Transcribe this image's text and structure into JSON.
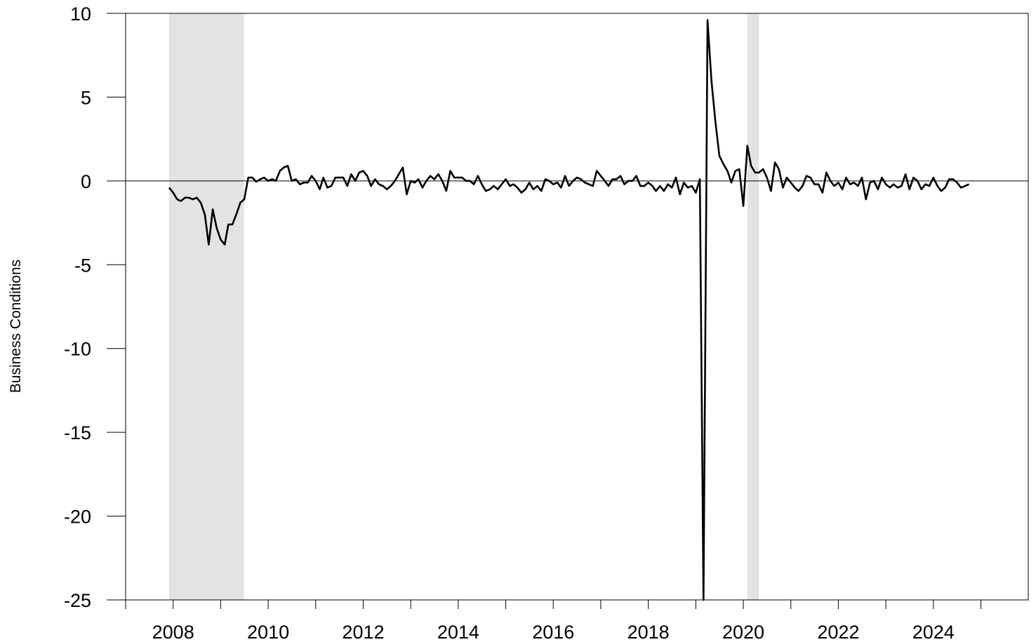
{
  "chart_data": {
    "type": "line",
    "title": "",
    "xlabel": "",
    "ylabel": "Business Conditions",
    "xlim": [
      "2007-01-01",
      "2025-12-31"
    ],
    "ylim": [
      -25,
      10
    ],
    "x_ticks": [
      "2008",
      "2010",
      "2012",
      "2014",
      "2016",
      "2018",
      "2020",
      "2022",
      "2024"
    ],
    "y_ticks": [
      10,
      5,
      0,
      -5,
      -10,
      -15,
      -20,
      -25
    ],
    "zero_line": 0,
    "grid": false,
    "legend": "none",
    "line_color": "#000000",
    "shade_color": "#e3e3e3",
    "shaded_periods": [
      {
        "start": "2007-12-01",
        "end": "2009-06-30"
      },
      {
        "start": "2020-02-01",
        "end": "2020-04-30"
      }
    ],
    "series": [
      {
        "points": [
          [
            "2007-12-01",
            -0.4
          ],
          [
            "2008-01-01",
            -0.7
          ],
          [
            "2008-02-01",
            -1.1
          ],
          [
            "2008-03-01",
            -1.2
          ],
          [
            "2008-04-01",
            -1.0
          ],
          [
            "2008-05-01",
            -1.0
          ],
          [
            "2008-06-01",
            -1.1
          ],
          [
            "2008-07-01",
            -1.0
          ],
          [
            "2008-08-01",
            -1.3
          ],
          [
            "2008-09-01",
            -2.0
          ],
          [
            "2008-10-01",
            -3.8
          ],
          [
            "2008-11-01",
            -1.7
          ],
          [
            "2008-12-01",
            -2.8
          ],
          [
            "2009-01-01",
            -3.5
          ],
          [
            "2009-02-01",
            -3.8
          ],
          [
            "2009-03-01",
            -2.6
          ],
          [
            "2009-04-01",
            -2.6
          ],
          [
            "2009-05-01",
            -2.0
          ],
          [
            "2009-06-01",
            -1.3
          ],
          [
            "2009-07-01",
            -1.1
          ],
          [
            "2009-08-01",
            0.2
          ],
          [
            "2009-09-01",
            0.2
          ],
          [
            "2009-10-01",
            -0.05
          ],
          [
            "2009-11-01",
            0.1
          ],
          [
            "2009-12-01",
            0.2
          ],
          [
            "2010-01-01",
            0.0
          ],
          [
            "2010-02-01",
            0.1
          ],
          [
            "2010-03-01",
            0.0
          ],
          [
            "2010-04-01",
            0.6
          ],
          [
            "2010-05-01",
            0.8
          ],
          [
            "2010-06-01",
            0.9
          ],
          [
            "2010-07-01",
            0.0
          ],
          [
            "2010-08-01",
            0.1
          ],
          [
            "2010-09-01",
            -0.2
          ],
          [
            "2010-10-01",
            -0.1
          ],
          [
            "2010-11-01",
            -0.1
          ],
          [
            "2010-12-01",
            0.3
          ],
          [
            "2011-01-01",
            0.0
          ],
          [
            "2011-02-01",
            -0.5
          ],
          [
            "2011-03-01",
            0.2
          ],
          [
            "2011-04-01",
            -0.4
          ],
          [
            "2011-05-01",
            -0.3
          ],
          [
            "2011-06-01",
            0.2
          ],
          [
            "2011-07-01",
            0.2
          ],
          [
            "2011-08-01",
            0.2
          ],
          [
            "2011-09-01",
            -0.3
          ],
          [
            "2011-10-01",
            0.4
          ],
          [
            "2011-11-01",
            0.0
          ],
          [
            "2011-12-01",
            0.5
          ],
          [
            "2012-01-01",
            0.6
          ],
          [
            "2012-02-01",
            0.3
          ],
          [
            "2012-03-01",
            -0.3
          ],
          [
            "2012-04-01",
            0.1
          ],
          [
            "2012-05-01",
            -0.2
          ],
          [
            "2012-06-01",
            -0.3
          ],
          [
            "2012-07-01",
            -0.5
          ],
          [
            "2012-08-01",
            -0.3
          ],
          [
            "2012-09-01",
            0.0
          ],
          [
            "2012-10-01",
            0.4
          ],
          [
            "2012-11-01",
            0.8
          ],
          [
            "2012-12-01",
            -0.8
          ],
          [
            "2013-01-01",
            0.0
          ],
          [
            "2013-02-01",
            -0.1
          ],
          [
            "2013-03-01",
            0.1
          ],
          [
            "2013-04-01",
            -0.4
          ],
          [
            "2013-05-01",
            0.0
          ],
          [
            "2013-06-01",
            0.3
          ],
          [
            "2013-07-01",
            0.1
          ],
          [
            "2013-08-01",
            0.4
          ],
          [
            "2013-09-01",
            0.0
          ],
          [
            "2013-10-01",
            -0.6
          ],
          [
            "2013-11-01",
            0.6
          ],
          [
            "2013-12-01",
            0.2
          ],
          [
            "2014-01-01",
            0.2
          ],
          [
            "2014-02-01",
            0.2
          ],
          [
            "2014-03-01",
            0.0
          ],
          [
            "2014-04-01",
            0.0
          ],
          [
            "2014-05-01",
            -0.2
          ],
          [
            "2014-06-01",
            0.3
          ],
          [
            "2014-07-01",
            -0.2
          ],
          [
            "2014-08-01",
            -0.6
          ],
          [
            "2014-09-01",
            -0.5
          ],
          [
            "2014-10-01",
            -0.3
          ],
          [
            "2014-11-01",
            -0.5
          ],
          [
            "2014-12-01",
            -0.2
          ],
          [
            "2015-01-01",
            0.1
          ],
          [
            "2015-02-01",
            -0.3
          ],
          [
            "2015-03-01",
            -0.2
          ],
          [
            "2015-04-01",
            -0.4
          ],
          [
            "2015-05-01",
            -0.7
          ],
          [
            "2015-06-01",
            -0.5
          ],
          [
            "2015-07-01",
            -0.1
          ],
          [
            "2015-08-01",
            -0.5
          ],
          [
            "2015-09-01",
            -0.3
          ],
          [
            "2015-10-01",
            -0.6
          ],
          [
            "2015-11-01",
            0.1
          ],
          [
            "2015-12-01",
            0.0
          ],
          [
            "2016-01-01",
            -0.2
          ],
          [
            "2016-02-01",
            -0.1
          ],
          [
            "2016-03-01",
            -0.4
          ],
          [
            "2016-04-01",
            0.3
          ],
          [
            "2016-05-01",
            -0.3
          ],
          [
            "2016-06-01",
            0.0
          ],
          [
            "2016-07-01",
            0.2
          ],
          [
            "2016-08-01",
            0.1
          ],
          [
            "2016-09-01",
            -0.1
          ],
          [
            "2016-10-01",
            -0.2
          ],
          [
            "2016-11-01",
            -0.3
          ],
          [
            "2016-12-01",
            0.6
          ],
          [
            "2017-01-01",
            0.3
          ],
          [
            "2017-02-01",
            0.0
          ],
          [
            "2017-03-01",
            -0.3
          ],
          [
            "2017-04-01",
            0.1
          ],
          [
            "2017-05-01",
            0.1
          ],
          [
            "2017-06-01",
            0.3
          ],
          [
            "2017-07-01",
            -0.2
          ],
          [
            "2017-08-01",
            0.0
          ],
          [
            "2017-09-01",
            0.0
          ],
          [
            "2017-10-01",
            0.3
          ],
          [
            "2017-11-01",
            -0.3
          ],
          [
            "2017-12-01",
            -0.3
          ],
          [
            "2018-01-01",
            -0.1
          ],
          [
            "2018-02-01",
            -0.3
          ],
          [
            "2018-03-01",
            -0.6
          ],
          [
            "2018-04-01",
            -0.3
          ],
          [
            "2018-05-01",
            -0.6
          ],
          [
            "2018-06-01",
            -0.2
          ],
          [
            "2018-07-01",
            -0.4
          ],
          [
            "2018-08-01",
            0.2
          ],
          [
            "2018-09-01",
            -0.8
          ],
          [
            "2018-10-01",
            -0.1
          ],
          [
            "2018-11-01",
            -0.4
          ],
          [
            "2018-12-01",
            -0.3
          ],
          [
            "2019-01-01",
            -0.7
          ],
          [
            "2019-02-01",
            0.1
          ],
          [
            "2019-03-01",
            -25.0
          ],
          [
            "2019-04-01",
            9.6
          ],
          [
            "2019-05-01",
            6.0
          ],
          [
            "2019-06-01",
            3.5
          ],
          [
            "2019-07-01",
            1.5
          ],
          [
            "2019-08-01",
            1.0
          ],
          [
            "2019-09-01",
            0.6
          ],
          [
            "2019-10-01",
            -0.1
          ],
          [
            "2019-11-01",
            0.6
          ],
          [
            "2019-12-01",
            0.7
          ],
          [
            "2020-01-01",
            -1.5
          ],
          [
            "2020-02-01",
            2.1
          ],
          [
            "2020-03-01",
            0.9
          ],
          [
            "2020-04-01",
            0.5
          ],
          [
            "2020-05-01",
            0.5
          ],
          [
            "2020-06-01",
            0.7
          ],
          [
            "2020-07-01",
            0.2
          ],
          [
            "2020-08-01",
            -0.6
          ],
          [
            "2020-09-01",
            1.1
          ],
          [
            "2020-10-01",
            0.7
          ],
          [
            "2020-11-01",
            -0.4
          ],
          [
            "2020-12-01",
            0.2
          ],
          [
            "2021-01-01",
            -0.1
          ],
          [
            "2021-02-01",
            -0.4
          ],
          [
            "2021-03-01",
            -0.6
          ],
          [
            "2021-04-01",
            -0.3
          ],
          [
            "2021-05-01",
            0.3
          ],
          [
            "2021-06-01",
            0.2
          ],
          [
            "2021-07-01",
            -0.2
          ],
          [
            "2021-08-01",
            -0.2
          ],
          [
            "2021-09-01",
            -0.7
          ],
          [
            "2021-10-01",
            0.5
          ],
          [
            "2021-11-01",
            0.0
          ],
          [
            "2021-12-01",
            -0.3
          ],
          [
            "2022-01-01",
            -0.1
          ],
          [
            "2022-02-01",
            -0.5
          ],
          [
            "2022-03-01",
            0.2
          ],
          [
            "2022-04-01",
            -0.2
          ],
          [
            "2022-05-01",
            -0.1
          ],
          [
            "2022-06-01",
            -0.3
          ],
          [
            "2022-07-01",
            0.2
          ],
          [
            "2022-08-01",
            -1.1
          ],
          [
            "2022-09-01",
            -0.1
          ],
          [
            "2022-10-01",
            0.0
          ],
          [
            "2022-11-01",
            -0.5
          ],
          [
            "2022-12-01",
            0.2
          ],
          [
            "2023-01-01",
            -0.2
          ],
          [
            "2023-02-01",
            -0.4
          ],
          [
            "2023-03-01",
            -0.2
          ],
          [
            "2023-04-01",
            -0.4
          ],
          [
            "2023-05-01",
            -0.3
          ],
          [
            "2023-06-01",
            0.4
          ],
          [
            "2023-07-01",
            -0.5
          ],
          [
            "2023-08-01",
            0.2
          ],
          [
            "2023-09-01",
            0.0
          ],
          [
            "2023-10-01",
            -0.5
          ],
          [
            "2023-11-01",
            -0.2
          ],
          [
            "2023-12-01",
            -0.3
          ],
          [
            "2024-01-01",
            0.2
          ],
          [
            "2024-02-01",
            -0.3
          ],
          [
            "2024-03-01",
            -0.6
          ],
          [
            "2024-04-01",
            -0.4
          ],
          [
            "2024-05-01",
            0.1
          ],
          [
            "2024-06-01",
            0.1
          ],
          [
            "2024-07-01",
            -0.1
          ],
          [
            "2024-08-01",
            -0.4
          ],
          [
            "2024-09-01",
            -0.3
          ],
          [
            "2024-10-01",
            -0.2
          ]
        ]
      }
    ]
  }
}
